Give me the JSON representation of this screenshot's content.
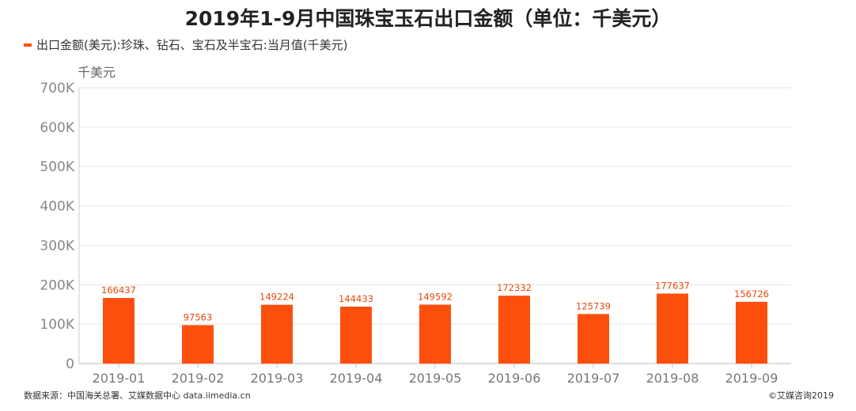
{
  "chart_data": {
    "type": "bar",
    "title": "2019年1-9月中国珠宝玉石出口金额（单位：千美元）",
    "legend": [
      "出口金额(美元):珍珠、钻石、宝石及半宝石:当月值(千美元)"
    ],
    "ylabel": "千美元",
    "categories": [
      "2019-01",
      "2019-02",
      "2019-03",
      "2019-04",
      "2019-05",
      "2019-06",
      "2019-07",
      "2019-08",
      "2019-09"
    ],
    "series": [
      {
        "name": "出口金额(美元):珍珠、钻石、宝石及半宝石:当月值(千美元)",
        "values": [
          166437,
          97563,
          149224,
          144433,
          149592,
          172332,
          125739,
          177637,
          156726
        ]
      }
    ],
    "ylim": [
      0,
      700000
    ],
    "yticks": [
      0,
      100000,
      200000,
      300000,
      400000,
      500000,
      600000,
      700000
    ],
    "ytick_labels": [
      "0",
      "100K",
      "200K",
      "300K",
      "400K",
      "500K",
      "600K",
      "700K"
    ],
    "grid": true,
    "legend_position": "top-left",
    "bar_color": "#fc4f0d",
    "label_color": "#e8490a"
  },
  "footer": {
    "source": "数据来源：中国海关总署、艾媒数据中心 data.iimedia.cn",
    "copyright": "©艾媒咨询2019"
  }
}
